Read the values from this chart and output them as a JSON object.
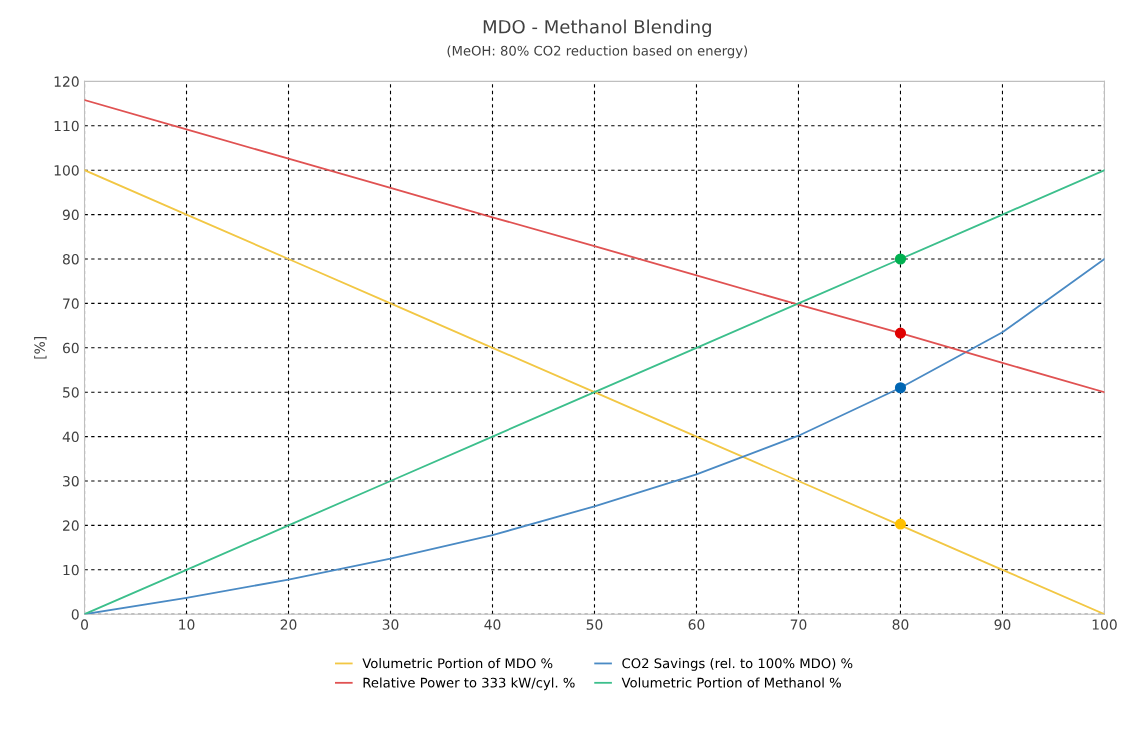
{
  "chart_data": {
    "type": "line",
    "title": "MDO - Methanol Blending",
    "subtitle": "(MeOH: 80% CO2 reduction based on energy)",
    "ylabel": "[%]",
    "x": [
      0,
      10,
      20,
      30,
      40,
      50,
      60,
      70,
      80,
      90,
      100
    ],
    "xlim": [
      0,
      100
    ],
    "xticks": [
      0,
      10,
      20,
      30,
      40,
      50,
      60,
      70,
      80,
      90,
      100
    ],
    "ylim": [
      0,
      120
    ],
    "yticks": [
      0,
      10,
      20,
      30,
      40,
      50,
      60,
      70,
      80,
      90,
      100,
      110,
      120
    ],
    "grid": true,
    "legend": "bottom",
    "marker": "none",
    "line_style": "solid",
    "series": [
      {
        "name": "Volumetric Portion of MDO %",
        "color": "#f2c744",
        "values": [
          100,
          90,
          80,
          70,
          60,
          50,
          40,
          30,
          20,
          10,
          0
        ]
      },
      {
        "name": "CO2 Savings (rel. to 100% MDO) %",
        "color": "#4a8ac4",
        "values": [
          0,
          3.7,
          7.8,
          12.5,
          17.8,
          24.3,
          31.5,
          40.2,
          51,
          63.5,
          80
        ]
      },
      {
        "name": "Relative Power to 333 kW/cyl. %",
        "color": "#e05252",
        "values": [
          115.8,
          109.2,
          102.6,
          96,
          89.4,
          82.9,
          76.3,
          69.7,
          63.3,
          56.6,
          50
        ]
      },
      {
        "name": "Volumetric Portion of Methanol %",
        "color": "#3cbf8c",
        "values": [
          0,
          10,
          20,
          30,
          40,
          50,
          60,
          70,
          80,
          90,
          100
        ]
      },
      {
        "type": "scatter",
        "color": "#00b050",
        "values": [
          null,
          null,
          null,
          null,
          null,
          null,
          null,
          null,
          80,
          null,
          null
        ],
        "marker": "circle"
      },
      {
        "type": "scatter",
        "color": "#e00000",
        "values": [
          null,
          null,
          null,
          null,
          null,
          null,
          null,
          null,
          63.3,
          null,
          null
        ],
        "marker": "circle"
      },
      {
        "type": "scatter",
        "color": "#0066b3",
        "values": [
          null,
          null,
          null,
          null,
          null,
          null,
          null,
          null,
          51,
          null,
          null
        ],
        "marker": "circle"
      },
      {
        "type": "scatter",
        "color": "#ffc000",
        "values": [
          null,
          null,
          null,
          null,
          null,
          null,
          null,
          null,
          20.3,
          null,
          null
        ],
        "marker": "circle"
      }
    ]
  }
}
